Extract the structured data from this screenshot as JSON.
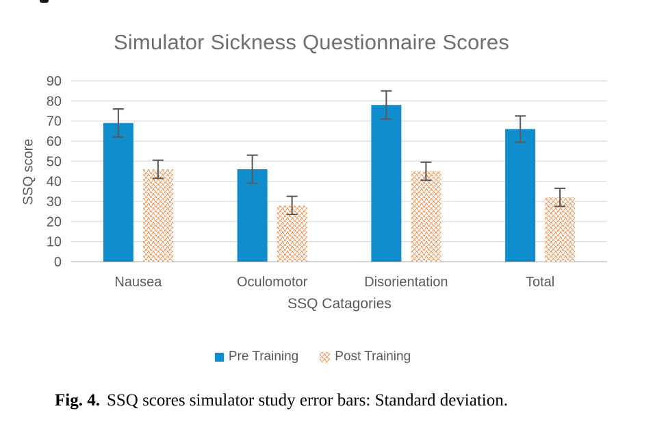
{
  "figure": {
    "caption_label": "Fig. 4.",
    "caption_text": "SSQ scores simulator study error bars: Standard deviation."
  },
  "chart_data": {
    "type": "bar",
    "title": "Simulator Sickness Questionnaire Scores",
    "xlabel": "SSQ Catagories",
    "ylabel": "SSQ score",
    "categories": [
      "Nausea",
      "Oculomotor",
      "Disorientation",
      "Total"
    ],
    "series": [
      {
        "name": "Pre Training",
        "values": [
          69,
          46,
          78,
          66
        ],
        "errors": [
          7,
          7,
          7,
          6.5
        ],
        "color": "#0f8dcd",
        "fill_style": "solid"
      },
      {
        "name": "Post Training",
        "values": [
          46,
          28,
          45,
          32
        ],
        "errors": [
          4.5,
          4.5,
          4.5,
          4.5
        ],
        "color": "#ed7d31",
        "fill_style": "dotted-diamond-pattern"
      }
    ],
    "error_bars": "standard deviation",
    "ylim": [
      0,
      90
    ],
    "y_ticks": [
      0,
      10,
      20,
      30,
      40,
      50,
      60,
      70,
      80,
      90
    ],
    "grid": "horizontal",
    "legend_position": "bottom",
    "colors": {
      "gridline": "#d9d9d9",
      "zero_axis": "#c6c6c6",
      "axis_text": "#595959",
      "title_text": "#6f6f6f",
      "error_bar": "#5b5b5b",
      "caption_text": "#000000"
    }
  }
}
